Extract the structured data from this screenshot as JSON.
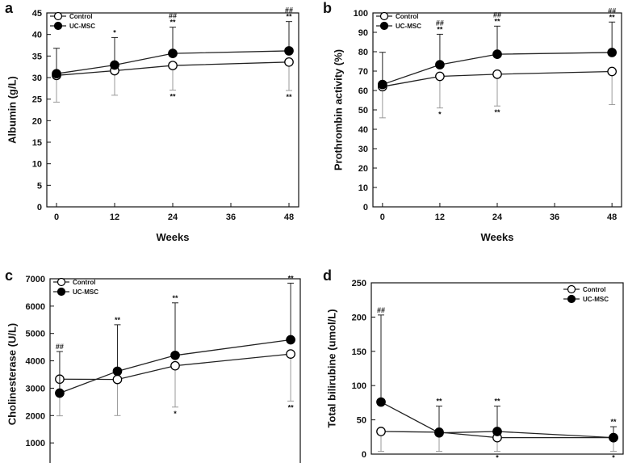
{
  "colors": {
    "control_fill": "#ffffff",
    "ucmsc_fill": "#000000",
    "control_error": "#9a9a9a",
    "ucmsc_error": "#222222",
    "axis": "#111111"
  },
  "chart_data": [
    {
      "panel": "a",
      "type": "line",
      "xlabel": "Weeks",
      "ylabel": "Albumin (g/L)",
      "xlim": [
        -2,
        50
      ],
      "ylim": [
        0,
        45
      ],
      "x_ticks": [
        0,
        12,
        24,
        36,
        48
      ],
      "y_ticks": [
        0,
        5,
        10,
        15,
        20,
        25,
        30,
        35,
        40,
        45
      ],
      "legend": {
        "position": "top-left",
        "entries": [
          "Control",
          "UC-MSC"
        ]
      },
      "series": [
        {
          "name": "Control",
          "marker": "open-circle",
          "x": [
            0,
            12,
            24,
            48
          ],
          "y": [
            30.5,
            31.6,
            32.8,
            33.6
          ],
          "err_low": [
            24.3,
            25.9,
            27.1,
            27.0
          ],
          "err_high": [
            null,
            null,
            null,
            null
          ]
        },
        {
          "name": "UC-MSC",
          "marker": "filled-circle",
          "x": [
            0,
            12,
            24,
            48
          ],
          "y": [
            30.9,
            32.9,
            35.6,
            36.2
          ],
          "err_low": [
            null,
            null,
            null,
            null
          ],
          "err_high": [
            36.8,
            39.3,
            41.7,
            43.0
          ]
        }
      ],
      "annotations": [
        {
          "x": 12,
          "y": 39.3,
          "pos": "above",
          "text": "*"
        },
        {
          "x": 24,
          "y": 41.7,
          "pos": "above",
          "text": "**"
        },
        {
          "x": 24,
          "y": 41.7,
          "pos": "above2",
          "text": "##"
        },
        {
          "x": 48,
          "y": 43.0,
          "pos": "above",
          "text": "**"
        },
        {
          "x": 48,
          "y": 43.0,
          "pos": "above2",
          "text": "##"
        },
        {
          "x": 24,
          "y": 27.1,
          "pos": "below",
          "text": "**"
        },
        {
          "x": 48,
          "y": 27.0,
          "pos": "below",
          "text": "**"
        }
      ]
    },
    {
      "panel": "b",
      "type": "line",
      "xlabel": "Weeks",
      "ylabel": "Prothrombin activity (%)",
      "xlim": [
        -2,
        50
      ],
      "ylim": [
        0,
        100
      ],
      "x_ticks": [
        0,
        12,
        24,
        36,
        48
      ],
      "y_ticks": [
        0,
        10,
        20,
        30,
        40,
        50,
        60,
        70,
        80,
        90,
        100
      ],
      "legend": {
        "position": "top-left",
        "entries": [
          "Control",
          "UC-MSC"
        ]
      },
      "series": [
        {
          "name": "Control",
          "marker": "open-circle",
          "x": [
            0,
            12,
            24,
            48
          ],
          "y": [
            62.0,
            67.3,
            68.4,
            69.8
          ],
          "err_low": [
            45.9,
            51.0,
            52.0,
            52.7
          ],
          "err_high": [
            null,
            null,
            null,
            null
          ]
        },
        {
          "name": "UC-MSC",
          "marker": "filled-circle",
          "x": [
            0,
            12,
            24,
            48
          ],
          "y": [
            63.1,
            73.3,
            78.7,
            79.6
          ],
          "err_low": [
            null,
            null,
            null,
            null
          ],
          "err_high": [
            79.7,
            89.0,
            93.2,
            95.3
          ]
        }
      ],
      "annotations": [
        {
          "x": 12,
          "y": 89.0,
          "pos": "above",
          "text": "**"
        },
        {
          "x": 12,
          "y": 89.0,
          "pos": "above2",
          "text": "##"
        },
        {
          "x": 24,
          "y": 93.2,
          "pos": "above",
          "text": "**"
        },
        {
          "x": 24,
          "y": 93.2,
          "pos": "above2",
          "text": "##"
        },
        {
          "x": 48,
          "y": 95.3,
          "pos": "above",
          "text": "**"
        },
        {
          "x": 48,
          "y": 95.3,
          "pos": "above2",
          "text": "##"
        },
        {
          "x": 12,
          "y": 51.0,
          "pos": "below",
          "text": "*"
        },
        {
          "x": 24,
          "y": 52.0,
          "pos": "below",
          "text": "**"
        }
      ]
    },
    {
      "panel": "c",
      "type": "line",
      "xlabel": "",
      "ylabel": "Cholinesterase (U/L)",
      "xlim": [
        -2,
        50
      ],
      "ylim": [
        0,
        7000
      ],
      "x_ticks": [],
      "y_ticks": [
        1000,
        2000,
        3000,
        4000,
        5000,
        6000,
        7000
      ],
      "legend": {
        "position": "top-left",
        "entries": [
          "Control",
          "UC-MSC"
        ]
      },
      "series": [
        {
          "name": "Control",
          "marker": "open-circle",
          "x": [
            0,
            12,
            24,
            48
          ],
          "y": [
            3330,
            3320,
            3820,
            4250
          ],
          "err_low": [
            1990,
            2000,
            2310,
            2530
          ],
          "err_high": [
            null,
            null,
            null,
            null
          ]
        },
        {
          "name": "UC-MSC",
          "marker": "filled-circle",
          "x": [
            0,
            12,
            24,
            48
          ],
          "y": [
            2820,
            3620,
            4200,
            4770
          ],
          "err_low": [
            null,
            null,
            null,
            null
          ],
          "err_high": [
            4340,
            5320,
            6120,
            6840
          ]
        }
      ],
      "annotations": [
        {
          "x": 0,
          "y": 4340,
          "pos": "above",
          "text": "##"
        },
        {
          "x": 12,
          "y": 5320,
          "pos": "above",
          "text": "**"
        },
        {
          "x": 24,
          "y": 6120,
          "pos": "above",
          "text": "**"
        },
        {
          "x": 48,
          "y": 6840,
          "pos": "above",
          "text": "**"
        },
        {
          "x": 24,
          "y": 2310,
          "pos": "below",
          "text": "*"
        },
        {
          "x": 48,
          "y": 2530,
          "pos": "below",
          "text": "**"
        }
      ]
    },
    {
      "panel": "d",
      "type": "line",
      "xlabel": "",
      "ylabel": "Total bilirubine (umol/L)",
      "xlim": [
        -2,
        50
      ],
      "ylim": [
        0,
        250
      ],
      "x_ticks": [],
      "y_ticks": [
        0,
        50,
        100,
        150,
        200,
        250
      ],
      "legend": {
        "position": "top-right",
        "entries": [
          "Control",
          "UC-MSC"
        ]
      },
      "series": [
        {
          "name": "Control",
          "marker": "open-circle",
          "x": [
            0,
            12,
            24,
            48
          ],
          "y": [
            33,
            32,
            24,
            24
          ],
          "err_low": [
            4,
            4,
            4,
            4
          ],
          "err_high": [
            null,
            null,
            null,
            null
          ]
        },
        {
          "name": "UC-MSC",
          "marker": "filled-circle",
          "x": [
            0,
            12,
            24,
            48
          ],
          "y": [
            76,
            31,
            33,
            24
          ],
          "err_low": [
            null,
            null,
            null,
            null
          ],
          "err_high": [
            203,
            70,
            70,
            40
          ]
        }
      ],
      "annotations": [
        {
          "x": 0,
          "y": 203,
          "pos": "above",
          "text": "##"
        },
        {
          "x": 12,
          "y": 70,
          "pos": "above",
          "text": "**"
        },
        {
          "x": 24,
          "y": 70,
          "pos": "above",
          "text": "**"
        },
        {
          "x": 48,
          "y": 40,
          "pos": "above",
          "text": "**"
        },
        {
          "x": 24,
          "y": 4,
          "pos": "below",
          "text": "*"
        },
        {
          "x": 48,
          "y": 4,
          "pos": "below",
          "text": "*"
        }
      ]
    }
  ]
}
